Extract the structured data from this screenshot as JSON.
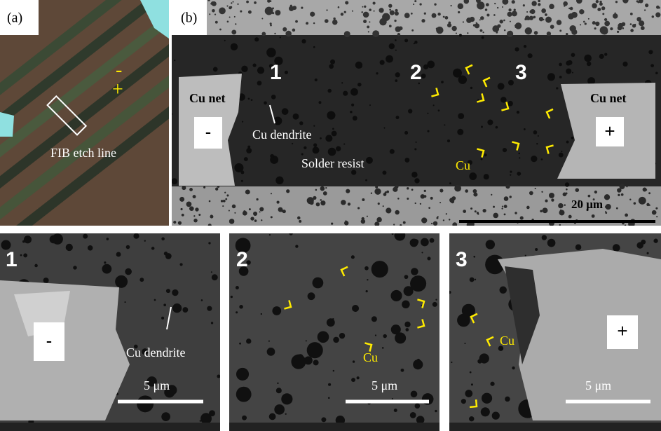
{
  "panel_a": {
    "label": "(a)",
    "minus": "-",
    "plus": "+",
    "etch_line": "FIB etch line"
  },
  "panel_b": {
    "label": "(b)",
    "regions": [
      "1",
      "2",
      "3"
    ],
    "left_net": "Cu net",
    "right_net": "Cu net",
    "minus": "-",
    "plus": "+",
    "dendrite": "Cu dendrite",
    "resist": "Solder resist",
    "cu": "Cu",
    "scale": "20 μm"
  },
  "zooms": [
    {
      "number": "1",
      "pole": "-",
      "dendrite": "Cu dendrite",
      "scale": "5 μm"
    },
    {
      "number": "2",
      "cu": "Cu",
      "scale": "5 μm"
    },
    {
      "number": "3",
      "cu": "Cu",
      "pole": "+",
      "scale": "5 μm"
    }
  ]
}
